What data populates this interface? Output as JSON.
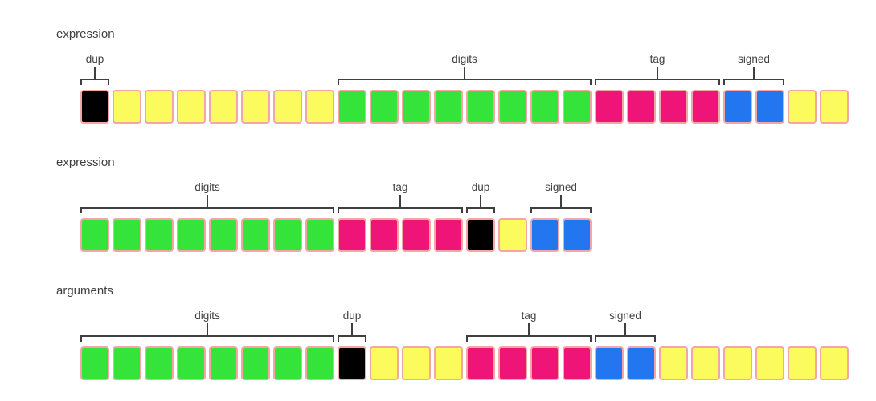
{
  "colors": {
    "yellow": "#fbfb5d",
    "green": "#35e43a",
    "pink": "#ee1478",
    "blue": "#2277f0",
    "black": "#000000",
    "border": "#f3a6a6",
    "text": "#3f3f3f",
    "background": "#ffffff"
  },
  "rows": [
    {
      "title": "expression",
      "cells": [
        "black",
        "yellow",
        "yellow",
        "yellow",
        "yellow",
        "yellow",
        "yellow",
        "yellow",
        "green",
        "green",
        "green",
        "green",
        "green",
        "green",
        "green",
        "green",
        "pink",
        "pink",
        "pink",
        "pink",
        "blue",
        "blue",
        "yellow",
        "yellow"
      ],
      "annotations": [
        {
          "start": 0,
          "span": 1,
          "label": "dup"
        },
        {
          "start": 8,
          "span": 8,
          "label": "digits"
        },
        {
          "start": 16,
          "span": 4,
          "label": "tag"
        },
        {
          "start": 20,
          "span": 2,
          "label": "signed"
        }
      ]
    },
    {
      "title": "expression",
      "cells": [
        "green",
        "green",
        "green",
        "green",
        "green",
        "green",
        "green",
        "green",
        "pink",
        "pink",
        "pink",
        "pink",
        "black",
        "yellow",
        "blue",
        "blue"
      ],
      "annotations": [
        {
          "start": 0,
          "span": 8,
          "label": "digits"
        },
        {
          "start": 8,
          "span": 4,
          "label": "tag"
        },
        {
          "start": 12,
          "span": 1,
          "label": "dup"
        },
        {
          "start": 14,
          "span": 2,
          "label": "signed"
        }
      ]
    },
    {
      "title": "arguments",
      "cells": [
        "green",
        "green",
        "green",
        "green",
        "green",
        "green",
        "green",
        "green",
        "black",
        "yellow",
        "yellow",
        "yellow",
        "pink",
        "pink",
        "pink",
        "pink",
        "blue",
        "blue",
        "yellow",
        "yellow",
        "yellow",
        "yellow",
        "yellow",
        "yellow"
      ],
      "annotations": [
        {
          "start": 0,
          "span": 8,
          "label": "digits"
        },
        {
          "start": 8,
          "span": 1,
          "label": "dup"
        },
        {
          "start": 12,
          "span": 4,
          "label": "tag"
        },
        {
          "start": 16,
          "span": 2,
          "label": "signed"
        }
      ]
    }
  ]
}
